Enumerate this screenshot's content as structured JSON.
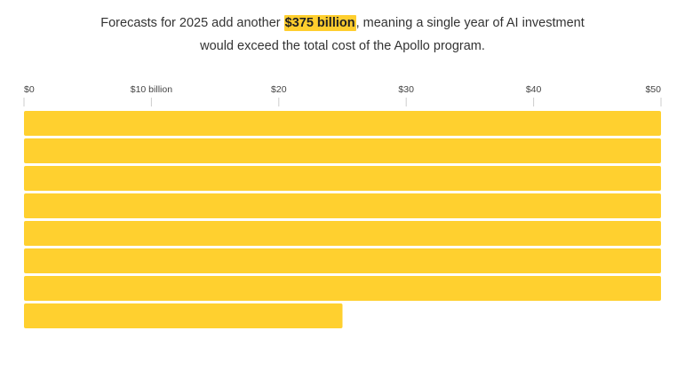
{
  "headline": {
    "before": "Forecasts for 2025 add another ",
    "highlight": "$375 billion",
    "after": ", meaning a single year of AI investment",
    "line2": "would exceed the total cost of the Apollo program."
  },
  "colors": {
    "bar": "#ffd02f",
    "highlight": "#ffce2e",
    "tick": "#cccccc",
    "text": "#333333"
  },
  "chart_data": {
    "type": "bar",
    "orientation": "horizontal",
    "title": "",
    "xlabel": "",
    "ylabel": "",
    "xlim": [
      0,
      50
    ],
    "ticks": [
      {
        "value": 0,
        "label": "$0"
      },
      {
        "value": 10,
        "label": "$10 billion"
      },
      {
        "value": 20,
        "label": "$20"
      },
      {
        "value": 30,
        "label": "$30"
      },
      {
        "value": 40,
        "label": "$40"
      },
      {
        "value": 50,
        "label": "$50"
      }
    ],
    "values": [
      50,
      50,
      50,
      50,
      50,
      50,
      50,
      25
    ],
    "grid": false,
    "legend": "none"
  }
}
